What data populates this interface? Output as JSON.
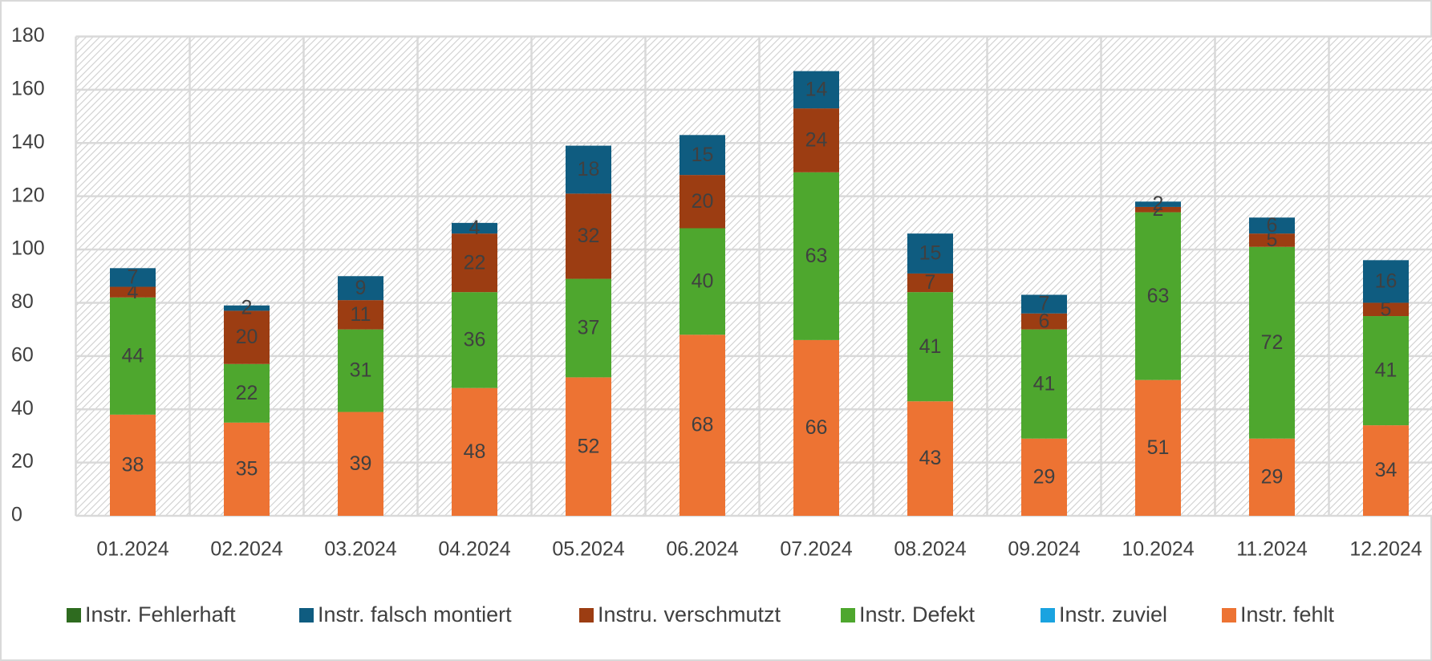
{
  "chart_data": {
    "type": "stacked_bar",
    "categories": [
      "01.2024",
      "02.2024",
      "03.2024",
      "04.2024",
      "05.2024",
      "06.2024",
      "07.2024",
      "08.2024",
      "09.2024",
      "10.2024",
      "11.2024",
      "12.2024"
    ],
    "series": [
      {
        "name": "Instr. fehlt",
        "color": "#ed7333",
        "values": [
          38,
          35,
          39,
          48,
          52,
          68,
          66,
          43,
          29,
          51,
          29,
          34
        ]
      },
      {
        "name": "Instr. zuviel",
        "color": "#1aa3e0",
        "values": [
          0,
          0,
          0,
          0,
          0,
          0,
          0,
          0,
          0,
          0,
          0,
          0
        ]
      },
      {
        "name": "Instr. Defekt",
        "color": "#4ea72e",
        "values": [
          44,
          22,
          31,
          36,
          37,
          40,
          63,
          41,
          41,
          63,
          72,
          41
        ]
      },
      {
        "name": "Instru. verschmutzt",
        "color": "#9c3d12",
        "values": [
          4,
          20,
          11,
          22,
          32,
          20,
          24,
          7,
          6,
          2,
          5,
          5
        ]
      },
      {
        "name": "Instr. falsch montiert",
        "color": "#0f5c80",
        "values": [
          7,
          2,
          9,
          4,
          18,
          15,
          14,
          15,
          7,
          2,
          6,
          16
        ]
      },
      {
        "name": "Instr. Fehlerhaft",
        "color": "#2e6b1f",
        "values": [
          0,
          0,
          0,
          0,
          0,
          0,
          0,
          0,
          0,
          0,
          0,
          0
        ]
      }
    ],
    "legend_order": [
      5,
      4,
      3,
      2,
      1,
      0
    ],
    "ylim": [
      0,
      180
    ],
    "yticks": [
      0,
      20,
      40,
      60,
      80,
      100,
      120,
      140,
      160,
      180
    ],
    "grid": true,
    "legend": "bottom"
  }
}
